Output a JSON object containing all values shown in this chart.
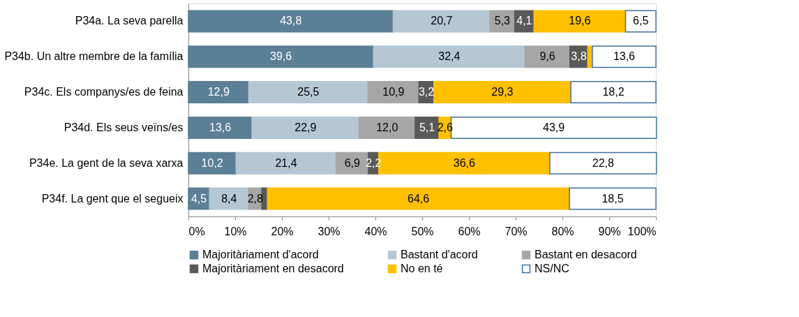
{
  "chart_data": {
    "type": "bar",
    "orientation": "horizontal",
    "stacked": true,
    "categories": [
      "P34a. La seva parella",
      "P34b. Un altre membre de la família",
      "P34c. Els companys/es de feina",
      "P34d. Els seus veïns/es",
      "P34e. La gent de la seva xarxa",
      "P34f. La gent que el segueix"
    ],
    "series": [
      {
        "name": "Majoritàriament d'acord",
        "color": "#5b7f95",
        "values": [
          43.8,
          39.6,
          12.9,
          13.6,
          10.2,
          4.5
        ],
        "value_labels": [
          "43,8",
          "39,6",
          "12,9",
          "13,6",
          "10,2",
          "4,5"
        ]
      },
      {
        "name": "Bastant d'acord",
        "color": "#b4c7d3",
        "values": [
          20.7,
          32.4,
          25.5,
          22.9,
          21.4,
          8.4
        ],
        "value_labels": [
          "20,7",
          "32,4",
          "25,5",
          "22,9",
          "21,4",
          "8,4"
        ]
      },
      {
        "name": "Bastant en desacord",
        "color": "#a6a6a6",
        "values": [
          5.3,
          9.6,
          10.9,
          12.0,
          6.9,
          2.8
        ],
        "value_labels": [
          "5,3",
          "9,6",
          "10,9",
          "12,0",
          "6,9",
          "2,8"
        ]
      },
      {
        "name": "Majoritàriament en desacord",
        "color": "#595959",
        "values": [
          4.1,
          3.8,
          3.2,
          5.1,
          2.2,
          1.2
        ],
        "value_labels": [
          "4,1",
          "3,8",
          "3,2",
          "5,1",
          "2,2",
          null
        ]
      },
      {
        "name": "No en té",
        "color": "#ffc000",
        "values": [
          19.6,
          1.0,
          29.3,
          2.6,
          36.6,
          64.6
        ],
        "value_labels": [
          "19,6",
          null,
          "29,3",
          "2,6",
          "36,6",
          "64,6"
        ]
      },
      {
        "name": "NS/NC",
        "color": "#ffffff",
        "values": [
          6.5,
          13.6,
          18.2,
          43.9,
          22.8,
          18.5
        ],
        "value_labels": [
          "6,5",
          "13,6",
          "18,2",
          "43,9",
          "22,8",
          "18,5"
        ]
      }
    ],
    "xlim": [
      0,
      100
    ],
    "xticks": [
      {
        "value": 0,
        "label": "0%"
      },
      {
        "value": 10,
        "label": "10%"
      },
      {
        "value": 20,
        "label": "20%"
      },
      {
        "value": 30,
        "label": "30%"
      },
      {
        "value": 40,
        "label": "40%"
      },
      {
        "value": 50,
        "label": "50%"
      },
      {
        "value": 60,
        "label": "60%"
      },
      {
        "value": 70,
        "label": "70%"
      },
      {
        "value": 80,
        "label": "80%"
      },
      {
        "value": 90,
        "label": "90%"
      },
      {
        "value": 100,
        "label": "100%"
      }
    ],
    "grid": false,
    "legend": "bottom"
  }
}
